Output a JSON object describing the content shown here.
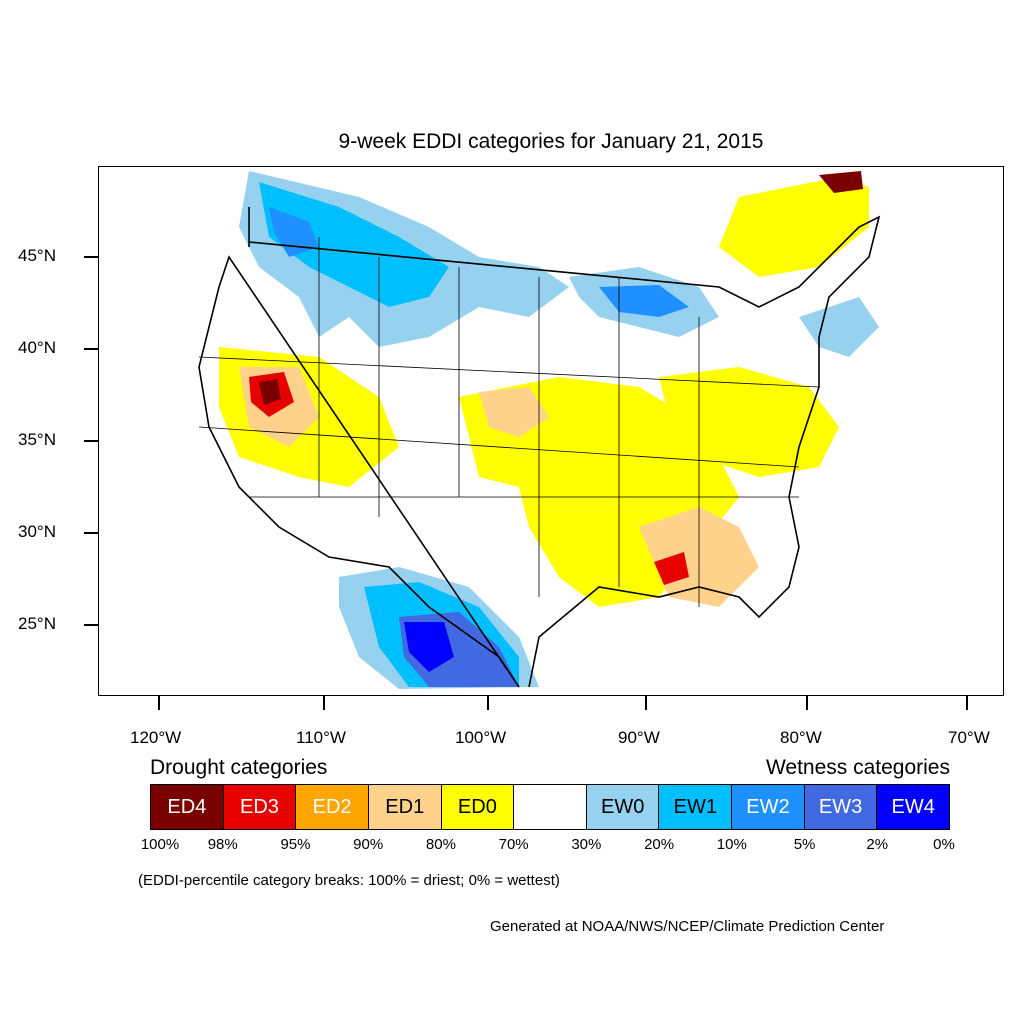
{
  "map": {
    "title": "9-week EDDI categories for January 21, 2015",
    "lat_labels": [
      "45°N",
      "40°N",
      "35°N",
      "30°N",
      "25°N"
    ],
    "lon_labels": [
      "120°W",
      "110°W",
      "100°W",
      "90°W",
      "80°W",
      "70°W"
    ]
  },
  "legend": {
    "drought_heading": "Drought categories",
    "wetness_heading": "Wetness categories",
    "categories": [
      {
        "label": "ED4",
        "color": "#7a0000",
        "text_color": "#ffffff"
      },
      {
        "label": "ED3",
        "color": "#e60000",
        "text_color": "#ffffff"
      },
      {
        "label": "ED2",
        "color": "#ffa500",
        "text_color": "#ffffff"
      },
      {
        "label": "ED1",
        "color": "#ffd28c",
        "text_color": "#000000"
      },
      {
        "label": "ED0",
        "color": "#ffff00",
        "text_color": "#000000"
      },
      {
        "label": "",
        "color": "#ffffff",
        "text_color": "#000000"
      },
      {
        "label": "EW0",
        "color": "#96d2f0",
        "text_color": "#000000"
      },
      {
        "label": "EW1",
        "color": "#00bfff",
        "text_color": "#000000"
      },
      {
        "label": "EW2",
        "color": "#1e90ff",
        "text_color": "#ffffff"
      },
      {
        "label": "EW3",
        "color": "#4169e1",
        "text_color": "#ffffff"
      },
      {
        "label": "EW4",
        "color": "#0000ff",
        "text_color": "#ffffff"
      }
    ],
    "breaks": [
      "100%",
      "98%",
      "95%",
      "90%",
      "80%",
      "70%",
      "30%",
      "20%",
      "10%",
      "5%",
      "2%",
      "0%"
    ],
    "note": "(EDDI-percentile category breaks: 100% = driest; 0% = wettest)"
  },
  "credit": "Generated at NOAA/NWS/NCEP/Climate Prediction Center"
}
